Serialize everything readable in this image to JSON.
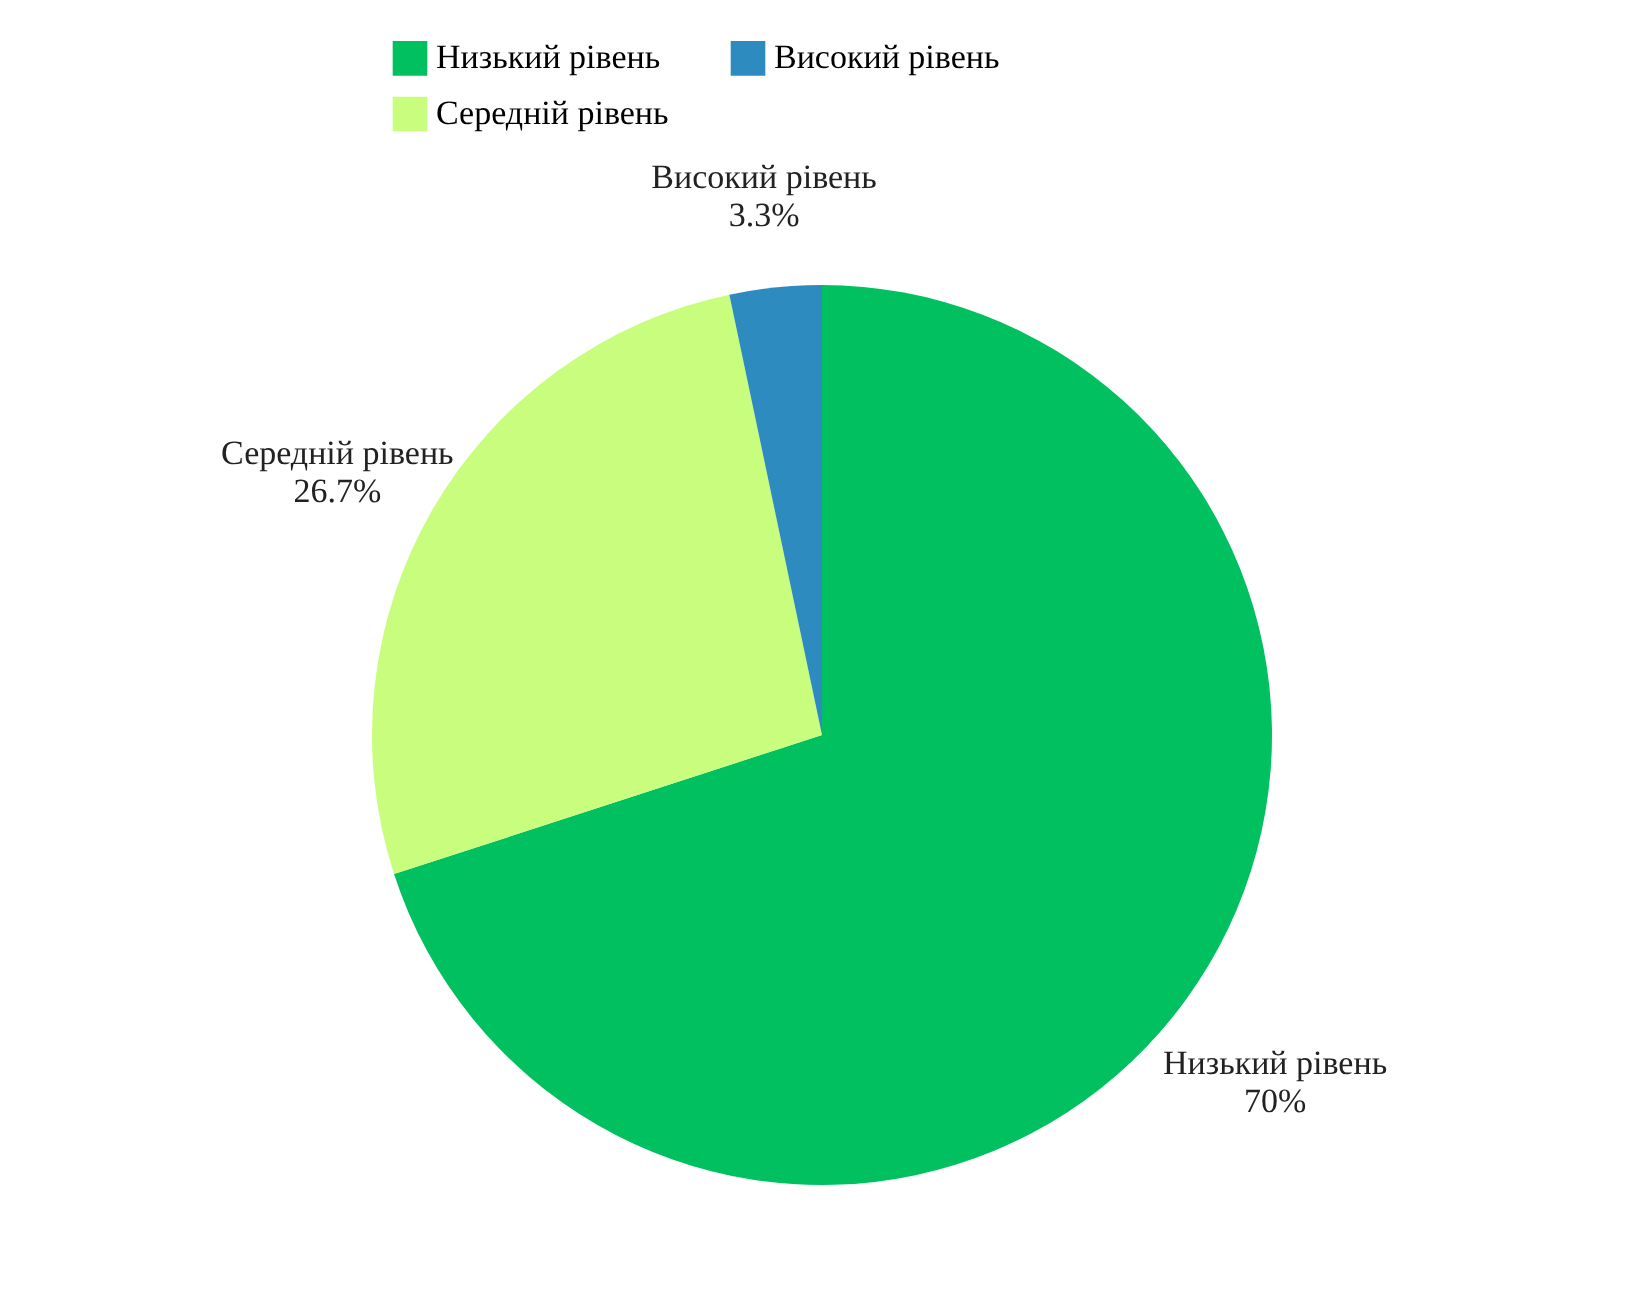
{
  "chart_data": {
    "type": "pie",
    "categories": [
      "Низький рівень",
      "Середній рівень",
      "Високий рівень"
    ],
    "values": [
      70,
      26.7,
      3.3
    ],
    "colors": [
      "#00c060",
      "#c9fd7d",
      "#2e8bbf"
    ],
    "value_labels": [
      "70%",
      "26.7%",
      "3.3%"
    ],
    "legend": "top"
  }
}
